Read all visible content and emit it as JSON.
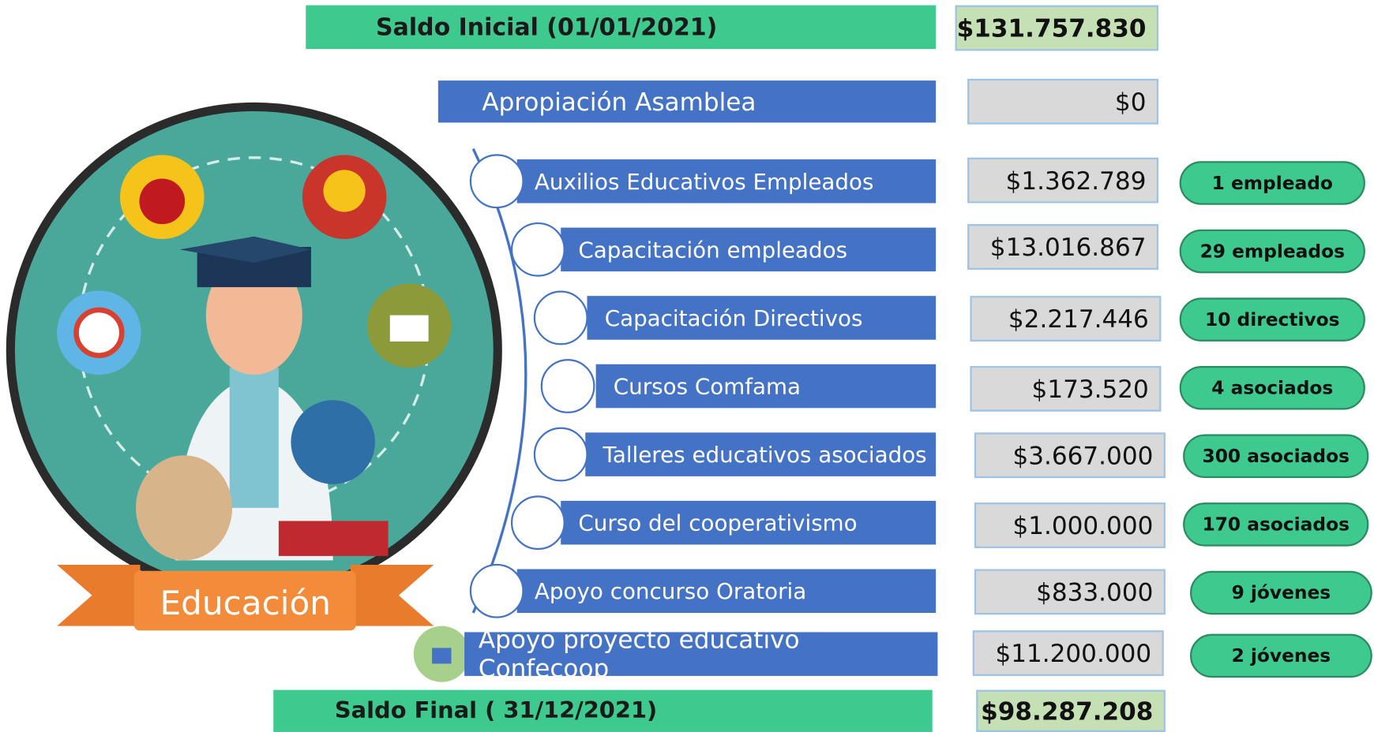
{
  "header": {
    "label": "Saldo Inicial (01/01/2021)",
    "amount": "$131.757.830"
  },
  "appropriation": {
    "label": "Apropiación Asamblea",
    "amount": "$0"
  },
  "items": [
    {
      "label": "Auxilios Educativos Empleados",
      "amount": "$1.362.789",
      "beneficiaries": "1 empleado"
    },
    {
      "label": "Capacitación empleados",
      "amount": "$13.016.867",
      "beneficiaries": "29 empleados"
    },
    {
      "label": "Capacitación Directivos",
      "amount": "$2.217.446",
      "beneficiaries": "10 directivos"
    },
    {
      "label": "Cursos Comfama",
      "amount": "$173.520",
      "beneficiaries": "4 asociados"
    },
    {
      "label": "Talleres educativos asociados",
      "amount": "$3.667.000",
      "beneficiaries": "300 asociados"
    },
    {
      "label": "Curso del cooperativismo",
      "amount": "$1.000.000",
      "beneficiaries": "170 asociados"
    },
    {
      "label": "Apoyo concurso Oratoria",
      "amount": "$833.000",
      "beneficiaries": "9 jóvenes"
    },
    {
      "label": "Apoyo proyecto educativo Confecoop",
      "amount": "$11.200.000",
      "beneficiaries": "2 jóvenes"
    }
  ],
  "footer": {
    "label": "Saldo Final ( 31/12/2021)",
    "amount": "$98.287.208"
  },
  "badge": "Educación"
}
